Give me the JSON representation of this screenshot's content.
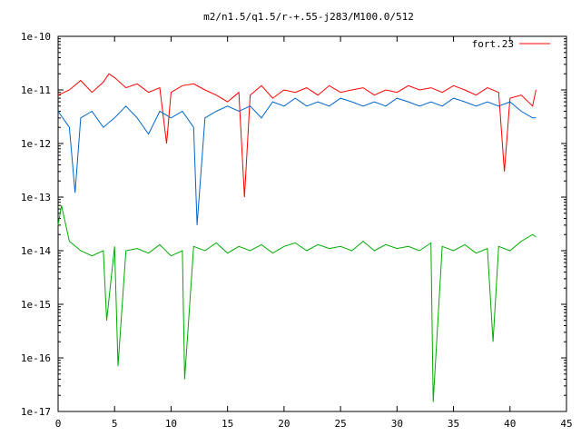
{
  "chart_data": {
    "type": "line",
    "title": "m2/n1.5/q1.5/r-+.55-j283/M100.0/512",
    "xlabel": "",
    "ylabel": "",
    "xlim": [
      0,
      45
    ],
    "ylim": [
      1e-17,
      1e-10
    ],
    "yscale": "log",
    "x_ticks": [
      0,
      5,
      10,
      15,
      20,
      25,
      30,
      35,
      40,
      45
    ],
    "x_tick_labels": [
      "0",
      "5",
      "10",
      "15",
      "20",
      "25",
      "30",
      "35",
      "40",
      "45"
    ],
    "y_ticks": [
      1e-17,
      1e-16,
      1e-15,
      1e-14,
      1e-13,
      1e-12,
      1e-11,
      1e-10
    ],
    "y_tick_labels": [
      "1e-17",
      "1e-16",
      "1e-15",
      "1e-14",
      "1e-13",
      "1e-12",
      "1e-11",
      "1e-10"
    ],
    "grid": false,
    "legend_position": "top-right",
    "series": [
      {
        "name": "fort.23",
        "color": "#ff0000",
        "x": [
          0,
          1,
          2,
          3,
          4,
          4.5,
          5,
          6,
          7,
          8,
          9,
          9.6,
          10,
          11,
          12,
          13,
          14,
          15,
          16,
          16.5,
          17,
          18,
          19,
          20,
          21,
          22,
          23,
          24,
          25,
          26,
          27,
          28,
          29,
          30,
          31,
          32,
          33,
          34,
          35,
          36,
          37,
          38,
          39,
          39.5,
          40,
          41,
          42,
          42.3
        ],
        "values": [
          8e-12,
          1e-11,
          1.5e-11,
          9e-12,
          1.4e-11,
          2e-11,
          1.7e-11,
          1.1e-11,
          1.3e-11,
          9e-12,
          1.1e-11,
          1e-12,
          9e-12,
          1.2e-11,
          1.3e-11,
          1e-11,
          8e-12,
          6e-12,
          9e-12,
          1e-13,
          8e-12,
          1.2e-11,
          7e-12,
          1e-11,
          9e-12,
          1.1e-11,
          8e-12,
          1.2e-11,
          9e-12,
          1e-11,
          1.1e-11,
          8e-12,
          1e-11,
          9e-12,
          1.2e-11,
          1e-11,
          1.1e-11,
          9e-12,
          1.2e-11,
          1e-11,
          8e-12,
          1.1e-11,
          9e-12,
          3e-13,
          7e-12,
          8e-12,
          5e-12,
          1e-11
        ]
      },
      {
        "name": "",
        "color": "#0066cc",
        "x": [
          0,
          1,
          1.5,
          2,
          3,
          4,
          5,
          6,
          7,
          8,
          9,
          10,
          11,
          12,
          12.3,
          13,
          14,
          15,
          16,
          17,
          18,
          19,
          20,
          21,
          22,
          23,
          24,
          25,
          26,
          27,
          28,
          29,
          30,
          31,
          32,
          33,
          34,
          35,
          36,
          37,
          38,
          39,
          40,
          41,
          42,
          42.3
        ],
        "values": [
          4e-12,
          2e-12,
          1.2e-13,
          3e-12,
          4e-12,
          2e-12,
          3e-12,
          5e-12,
          3e-12,
          1.5e-12,
          4e-12,
          3e-12,
          4e-12,
          2e-12,
          3e-14,
          3e-12,
          4e-12,
          5e-12,
          4e-12,
          5e-12,
          3e-12,
          6e-12,
          5e-12,
          7e-12,
          5e-12,
          6e-12,
          5e-12,
          7e-12,
          6e-12,
          5e-12,
          6e-12,
          5e-12,
          7e-12,
          6e-12,
          5e-12,
          6e-12,
          5e-12,
          7e-12,
          6e-12,
          5e-12,
          6e-12,
          5e-12,
          6e-12,
          4e-12,
          3e-12,
          3e-12
        ]
      },
      {
        "name": "",
        "color": "#00aa00",
        "x": [
          0,
          0.3,
          1,
          2,
          3,
          4,
          4.3,
          5,
          5.3,
          6,
          7,
          8,
          9,
          10,
          11,
          11.2,
          12,
          13,
          14,
          15,
          16,
          17,
          18,
          19,
          20,
          21,
          22,
          23,
          24,
          25,
          26,
          27,
          28,
          29,
          30,
          31,
          32,
          33,
          33.2,
          34,
          35,
          36,
          37,
          38,
          38.5,
          39,
          40,
          41,
          42,
          42.3
        ],
        "values": [
          3e-14,
          7e-14,
          1.5e-14,
          1e-14,
          8e-15,
          1e-14,
          5e-16,
          1.2e-14,
          7e-17,
          1e-14,
          1.1e-14,
          9e-15,
          1.3e-14,
          8e-15,
          1e-14,
          4e-17,
          1.2e-14,
          1e-14,
          1.4e-14,
          9e-15,
          1.2e-14,
          1e-14,
          1.3e-14,
          9e-15,
          1.2e-14,
          1.4e-14,
          1e-14,
          1.3e-14,
          1.1e-14,
          1.2e-14,
          1e-14,
          1.5e-14,
          1e-14,
          1.3e-14,
          1.1e-14,
          1.2e-14,
          1e-14,
          1.4e-14,
          1.5e-17,
          1.2e-14,
          1e-14,
          1.3e-14,
          9e-15,
          1.1e-14,
          2e-16,
          1.2e-14,
          1e-14,
          1.5e-14,
          2e-14,
          1.8e-14
        ]
      }
    ]
  }
}
